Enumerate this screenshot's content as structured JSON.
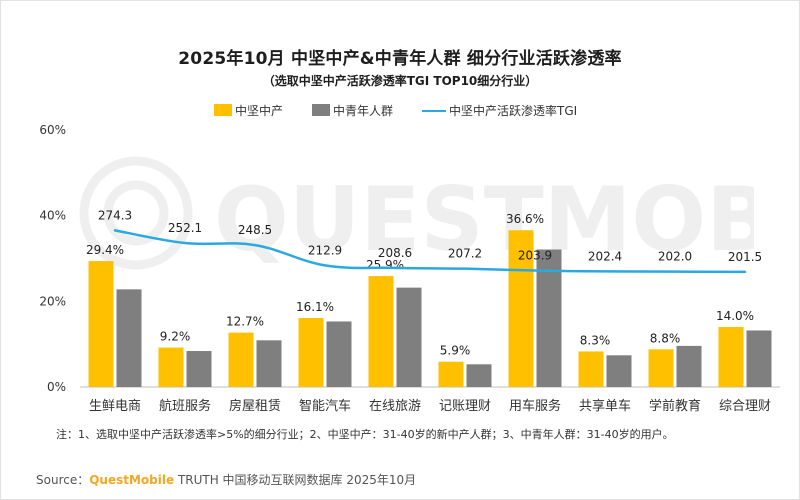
{
  "title": "2025年10月 中坚中产&中青年人群 细分行业活跃渗透率",
  "subtitle": "（选取中坚中产活跃渗透率TGI TOP10细分行业）",
  "watermark": "QUESTMOBILE",
  "note": "注：1、选取中坚中产活跃渗透率>5%的细分行业；2、中坚中产：31-40岁的新中产人群；3、中青年人群：31-40岁的用户。",
  "source": {
    "prefix": "Source：",
    "brand": "QuestMobile",
    "suffix": " TRUTH 中国移动互联网数据库 2025年10月"
  },
  "colors": {
    "series1": "#FFC000",
    "series2": "#7F7F7F",
    "line": "#29A9E0",
    "axis_text": "#333333",
    "grid": "#d9d9d9"
  },
  "chart_data": {
    "type": "bar",
    "title": "2025年10月 中坚中产&中青年人群 细分行业活跃渗透率",
    "subtitle": "（选取中坚中产活跃渗透率TGI TOP10细分行业）",
    "categories": [
      "生鲜电商",
      "航班服务",
      "房屋租赁",
      "智能汽车",
      "在线旅游",
      "记账理财",
      "用车服务",
      "共享单车",
      "学前教育",
      "综合理财"
    ],
    "series": [
      {
        "name": "中坚中产",
        "type": "bar",
        "values": [
          29.4,
          9.2,
          12.7,
          16.1,
          25.9,
          5.9,
          36.6,
          8.3,
          8.8,
          14.0
        ],
        "labels": [
          "29.4%",
          "9.2%",
          "12.7%",
          "16.1%",
          "25.9%",
          "5.9%",
          "36.6%",
          "8.3%",
          "8.8%",
          "14.0%"
        ]
      },
      {
        "name": "中青年人群",
        "type": "bar",
        "values": [
          22.8,
          8.4,
          10.9,
          15.3,
          23.2,
          5.3,
          32.1,
          7.4,
          9.6,
          13.2
        ]
      },
      {
        "name": "中坚中产活跃渗透率TGI",
        "type": "line",
        "values": [
          274.3,
          252.1,
          248.5,
          212.9,
          208.6,
          207.2,
          203.9,
          202.4,
          202.0,
          201.5
        ],
        "labels": [
          "274.3",
          "252.1",
          "248.5",
          "212.9",
          "208.6",
          "207.2",
          "203.9",
          "202.4",
          "202.0",
          "201.5"
        ]
      }
    ],
    "yaxis": {
      "ticks": [
        "0%",
        "20%",
        "40%",
        "60%"
      ],
      "tick_values": [
        0,
        20,
        40,
        60
      ],
      "ylim": [
        0,
        60
      ]
    },
    "y2lim": [
      0,
      450
    ],
    "legend_position": "top",
    "grid": false
  }
}
